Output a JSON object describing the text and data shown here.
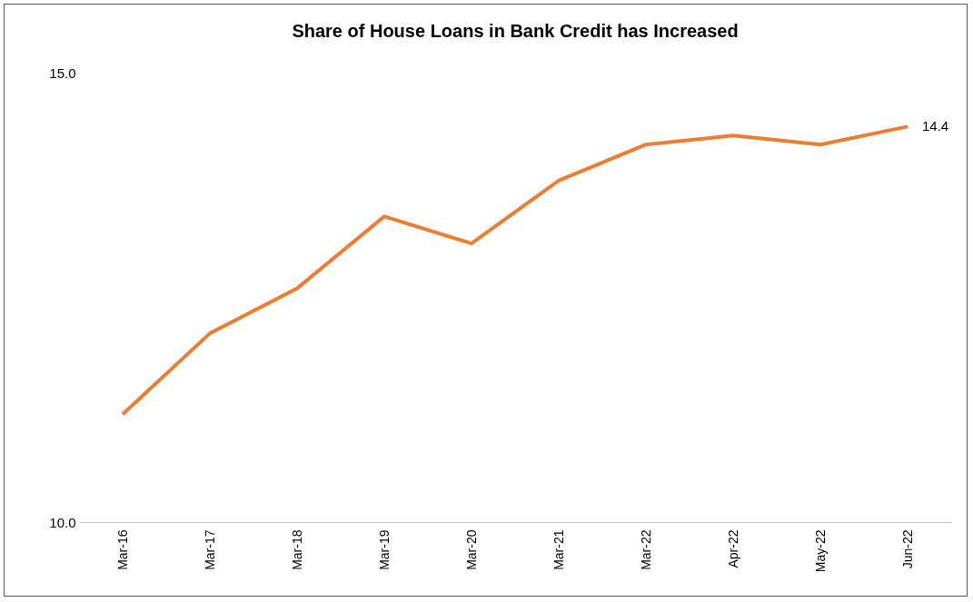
{
  "chart_data": {
    "type": "line",
    "title": "Share of House Loans in Bank Credit has Increased",
    "categories": [
      "Mar-16",
      "Mar-17",
      "Mar-18",
      "Mar-19",
      "Mar-20",
      "Mar-21",
      "Mar-22",
      "Apr-22",
      "May-22",
      "Jun-22"
    ],
    "series": [
      {
        "color": "#ed7d31",
        "values": [
          11.2,
          12.1,
          12.6,
          13.4,
          13.1,
          13.8,
          14.2,
          14.3,
          14.2,
          14.4
        ],
        "value_labels": [
          null,
          null,
          null,
          null,
          null,
          null,
          null,
          null,
          null,
          "14.4"
        ]
      }
    ],
    "ylim": [
      10,
      15
    ],
    "yticks": [
      {
        "value": 10,
        "label": "10.0"
      },
      {
        "value": 15,
        "label": "15.0"
      }
    ],
    "grid": false,
    "marker": "none",
    "line_style": "solid"
  }
}
